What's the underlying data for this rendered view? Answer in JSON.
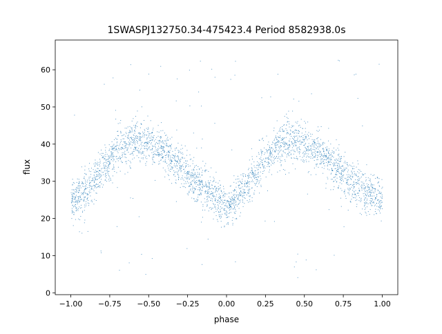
{
  "chart_data": {
    "type": "scatter",
    "title": "1SWASPJ132750.34-475423.4 Period 8582938.0s",
    "xlabel": "phase",
    "ylabel": "flux",
    "xlim": [
      -1.1,
      1.1
    ],
    "ylim": [
      -0.5,
      68
    ],
    "xticks": [
      -1.0,
      -0.75,
      -0.5,
      -0.25,
      0.0,
      0.25,
      0.5,
      0.75,
      1.0
    ],
    "xtick_labels": [
      "−1.00",
      "−0.75",
      "−0.50",
      "−0.25",
      "0.00",
      "0.25",
      "0.50",
      "0.75",
      "1.00"
    ],
    "yticks": [
      0,
      10,
      20,
      30,
      40,
      50,
      60
    ],
    "ytick_labels": [
      "0",
      "10",
      "20",
      "30",
      "40",
      "50",
      "60"
    ],
    "grid": false,
    "legend": "none",
    "marker_color": "#1f77b4",
    "series": [
      {
        "description_trend": "phase-folded light curve, plotted for two cycles (phase -1 to 1)",
        "x": [
          -1.0,
          -0.9,
          -0.8,
          -0.7,
          -0.6,
          -0.5,
          -0.4,
          -0.3,
          -0.2,
          -0.1,
          0.0,
          0.1,
          0.2,
          0.3,
          0.4,
          0.5,
          0.6,
          0.7,
          0.8,
          0.9,
          1.0
        ],
        "y_mean": [
          25,
          27,
          33,
          39,
          41,
          40,
          38,
          34,
          30,
          27,
          23,
          27,
          33,
          39,
          41,
          40,
          38,
          34,
          30,
          27,
          25
        ],
        "y_spread": [
          5,
          5,
          5,
          5,
          6,
          5,
          5,
          5,
          5,
          5,
          4,
          5,
          5,
          5,
          6,
          5,
          5,
          5,
          5,
          5,
          5
        ]
      }
    ]
  }
}
